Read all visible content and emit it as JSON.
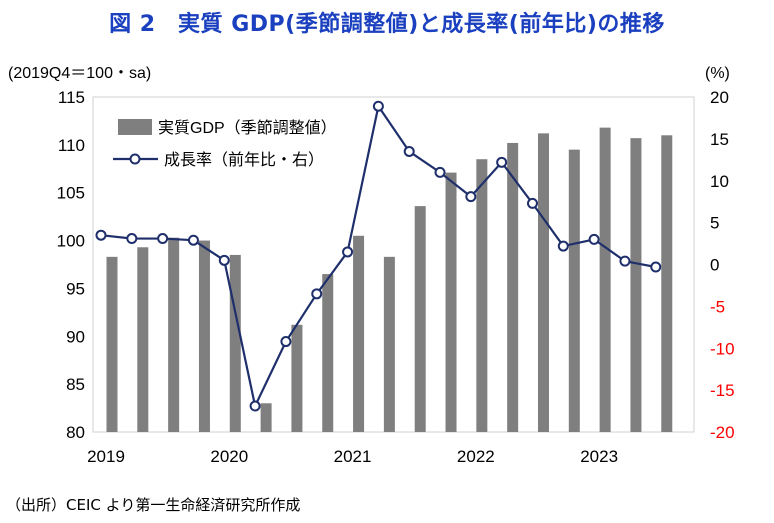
{
  "title": "図 2　実質 GDP(季節調整値)と成長率(前年比)の推移",
  "left_axis_unit": "(2019Q4＝100・sa)",
  "right_axis_unit": "(%)",
  "source": "（出所）CEIC より第一生命経済研究所作成",
  "colors": {
    "bar": "#7f7f7f",
    "line": "#1f2f6b",
    "title": "#1a3fbf",
    "negative_tick": "#ff0000"
  },
  "chart_data": {
    "type": "bar+line",
    "categories": [
      "2019Q1",
      "2019Q2",
      "2019Q3",
      "2019Q4",
      "2020Q1",
      "2020Q2",
      "2020Q3",
      "2020Q4",
      "2021Q1",
      "2021Q2",
      "2021Q3",
      "2021Q4",
      "2022Q1",
      "2022Q2",
      "2022Q3",
      "2022Q4",
      "2023Q1",
      "2023Q2",
      "2023Q3",
      "2023Q4"
    ],
    "x_tick_labels": [
      "2019",
      "2020",
      "2021",
      "2022",
      "2023"
    ],
    "x_tick_category_index": [
      0,
      4,
      8,
      12,
      16
    ],
    "series": [
      {
        "name": "実質GDP（季節調整値）",
        "type": "bar",
        "axis": "left",
        "values": [
          98.3,
          99.3,
          100.3,
          100.0,
          98.5,
          83.0,
          91.2,
          96.5,
          100.5,
          98.3,
          103.6,
          107.1,
          108.5,
          110.2,
          111.2,
          109.5,
          111.8,
          110.7,
          111.0,
          null
        ]
      },
      {
        "name": "成長率（前年比・右）",
        "type": "line",
        "axis": "right",
        "values": [
          3.5,
          3.1,
          3.1,
          2.9,
          0.5,
          -16.9,
          -9.2,
          -3.5,
          1.5,
          18.9,
          13.5,
          11.0,
          8.1,
          12.2,
          7.3,
          2.2,
          3.0,
          0.4,
          -0.3,
          null
        ]
      }
    ],
    "ylim_left": [
      80,
      115
    ],
    "yticks_left": [
      80,
      85,
      90,
      95,
      100,
      105,
      110,
      115
    ],
    "ylim_right": [
      -20,
      20
    ],
    "yticks_right": [
      -20,
      -15,
      -10,
      -5,
      0,
      5,
      10,
      15,
      20
    ],
    "legend_position": "top-left"
  }
}
